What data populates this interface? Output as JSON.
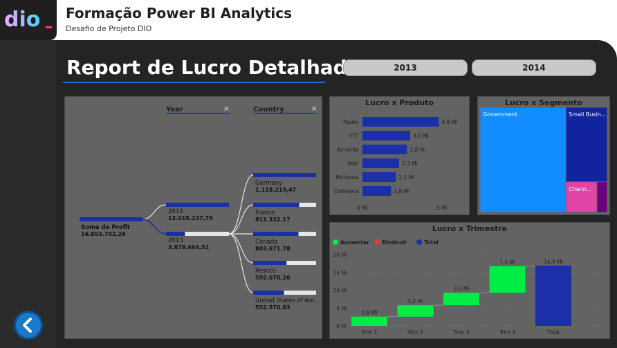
{
  "header": {
    "logo_text": "dio",
    "title": "Formação Power BI Analytics",
    "subtitle": "Desafio de Projeto DIO"
  },
  "report": {
    "title": "Report de Lucro Detalhado",
    "year_slicers": [
      "2013",
      "2014"
    ]
  },
  "decomp_tree": {
    "level_headers": [
      "Year",
      "Country"
    ],
    "close_symbol": "×",
    "root": {
      "label": "Soma de Profit",
      "value": "16.893.702,26"
    },
    "years": [
      {
        "label": "2014",
        "value": "13.015.237,75",
        "fill": 1.0
      },
      {
        "label": "2013",
        "value": "3.878.464,51",
        "fill": 0.3
      }
    ],
    "countries": [
      {
        "label": "Germany",
        "value": "1.118.219,47",
        "fill": 1.0
      },
      {
        "label": "France",
        "value": "811.332,17",
        "fill": 0.73
      },
      {
        "label": "Canada",
        "value": "803.671,78",
        "fill": 0.72
      },
      {
        "label": "Mexico",
        "value": "592.670,26",
        "fill": 0.53
      },
      {
        "label": "United States of Am...",
        "value": "552.570,83",
        "fill": 0.49
      }
    ]
  },
  "chart_produto_title": "Lucro x Produto",
  "chart_segmento_title": "Lucro x Segmento",
  "chart_trimestre_title": "Lucro x Trimestre",
  "chart_data": [
    {
      "type": "bar",
      "orientation": "horizontal",
      "title": "Lucro x Produto",
      "categories": [
        "Paseo",
        "VTT",
        "Amarilla",
        "Velo",
        "Montana",
        "Carretera"
      ],
      "values": [
        4.8,
        3.0,
        2.8,
        2.3,
        2.1,
        1.8
      ],
      "data_labels": [
        "4,8 Mi",
        "3,0 Mi",
        "2,8 Mi",
        "2,3 Mi",
        "2,1 Mi",
        "1,8 Mi"
      ],
      "x_ticks": [
        "0 Mi",
        "5 Mi"
      ],
      "xlim": [
        0,
        5.2
      ],
      "color": "#1a2fa8"
    },
    {
      "type": "treemap",
      "title": "Lucro x Segmento",
      "labels": [
        "Government",
        "Small Busin...",
        "Chann...",
        ""
      ],
      "values": [
        11.4,
        3.9,
        1.2,
        0.4
      ],
      "colors": [
        "#118dff",
        "#12239e",
        "#e044a7",
        "#6b007b"
      ]
    },
    {
      "type": "waterfall",
      "title": "Lucro x Trimestre",
      "categories": [
        "Trim 1",
        "Trim 2",
        "Trim 3",
        "Trim 4",
        "Total"
      ],
      "values": [
        2.6,
        3.2,
        3.5,
        7.5,
        16.9
      ],
      "data_labels": [
        "2,6 Mi",
        "3,2 Mi",
        "3,5 Mi",
        "7,5 Mi",
        "16,9 Mi"
      ],
      "kinds": [
        "increase",
        "increase",
        "increase",
        "increase",
        "total"
      ],
      "legend": [
        {
          "name": "Aumentar",
          "color": "#00ee44"
        },
        {
          "name": "Diminuir",
          "color": "#e03c3c"
        },
        {
          "name": "Total",
          "color": "#1a2fa8"
        }
      ],
      "y_ticks": [
        "0 Mi",
        "5 Mi",
        "10 Mi",
        "15 Mi",
        "20 Mi"
      ],
      "ylim": [
        0,
        20
      ],
      "legend_position": "top-left"
    }
  ]
}
